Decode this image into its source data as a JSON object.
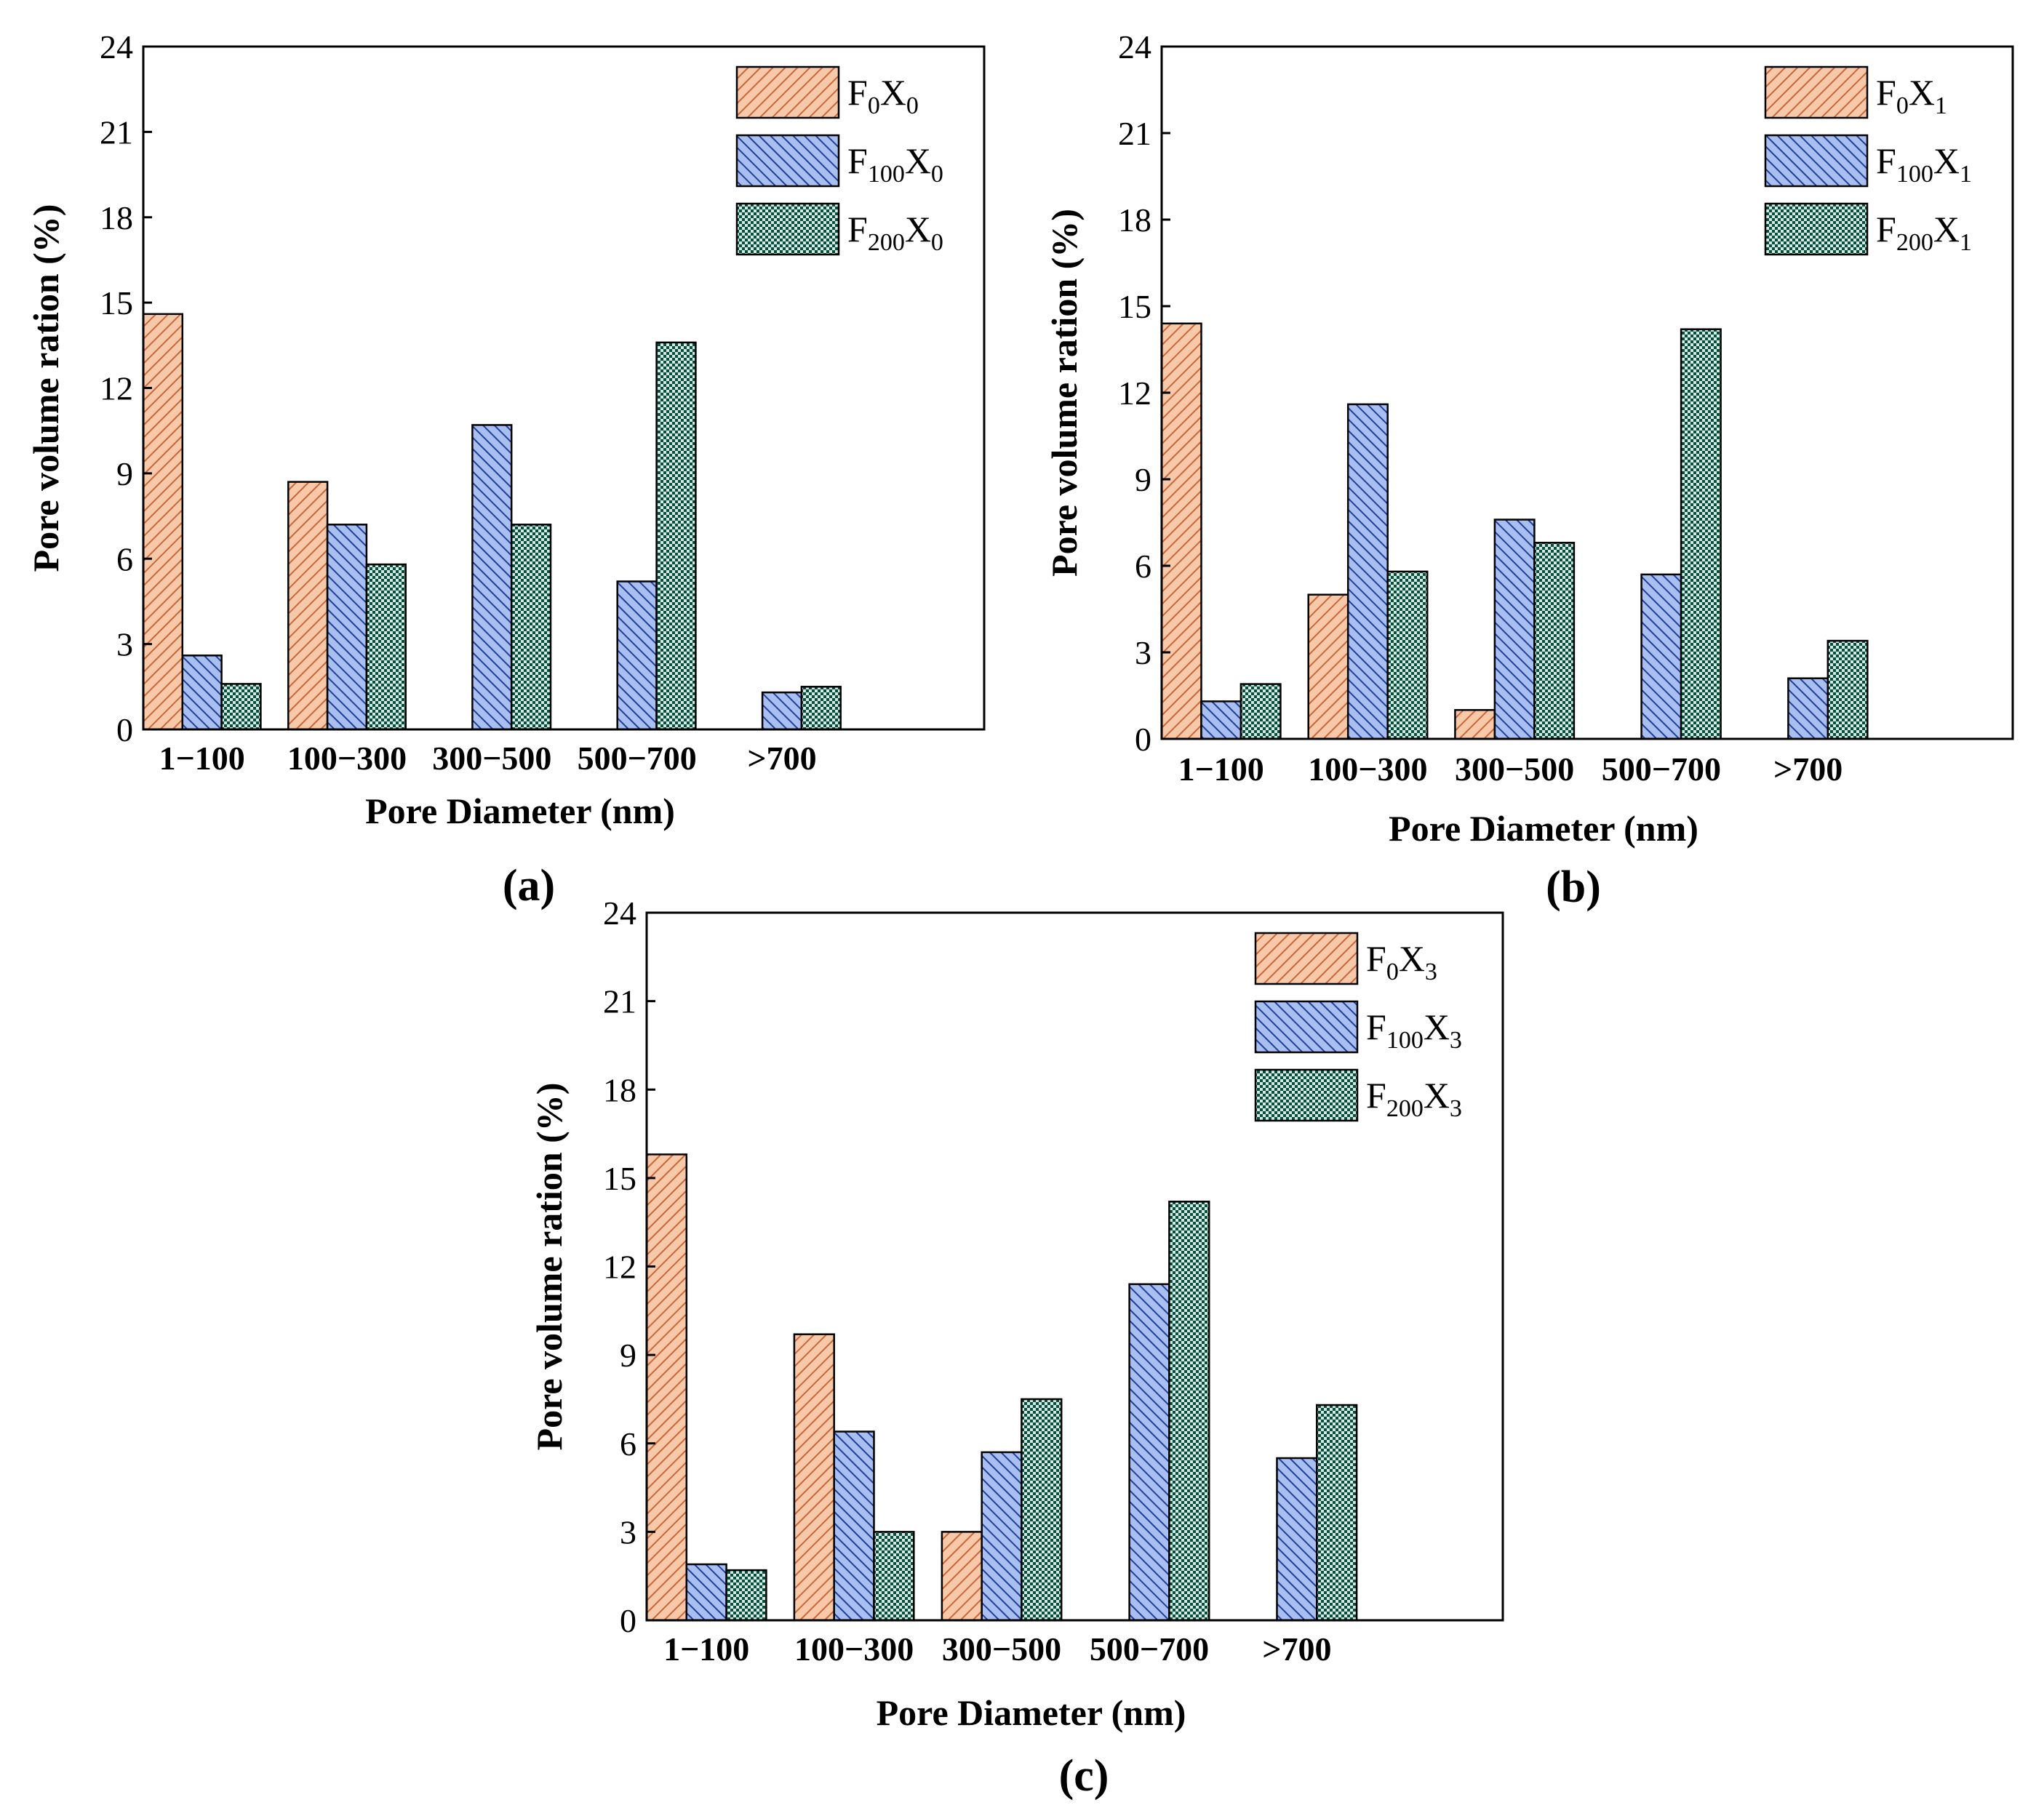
{
  "figure": {
    "description_labels": [
      "(a)",
      "(b)",
      "(c)"
    ]
  },
  "colors": {
    "orange_fill": "#f7c9a8",
    "orange_stripe": "#c8673a",
    "blue_fill": "#a9bff0",
    "blue_stripe": "#1f3f9a",
    "green_fill": "#cfeee6",
    "green_dot": "#0d4a3c",
    "axis": "#000000"
  },
  "chart_data": [
    {
      "panel_label": "(a)",
      "type": "bar",
      "xlabel": "Pore Diameter (nm)",
      "ylabel": "Pore volume ration (%)",
      "ylim": [
        0,
        24
      ],
      "yticks": [
        "0",
        "3",
        "6",
        "9",
        "12",
        "15",
        "18",
        "21",
        "24"
      ],
      "categories": [
        "1−100",
        "100−300",
        "300−500",
        "500−700",
        ">700"
      ],
      "legend_position": "top-right",
      "series": [
        {
          "name": "F0X0",
          "label_main": "F",
          "label_sub1": "0",
          "label_mid": "X",
          "label_sub2": "0",
          "pattern": "orange",
          "values": [
            14.6,
            8.7,
            0,
            0,
            0
          ]
        },
        {
          "name": "F100X0",
          "label_main": "F",
          "label_sub1": "100",
          "label_mid": "X",
          "label_sub2": "0",
          "pattern": "blue",
          "values": [
            2.6,
            7.2,
            10.7,
            5.2,
            1.3
          ]
        },
        {
          "name": "F200X0",
          "label_main": "F",
          "label_sub1": "200",
          "label_mid": "X",
          "label_sub2": "0",
          "pattern": "green",
          "values": [
            1.6,
            5.8,
            7.2,
            13.6,
            1.5
          ]
        }
      ]
    },
    {
      "panel_label": "(b)",
      "type": "bar",
      "xlabel": "Pore Diameter (nm)",
      "ylabel": "Pore volume ration (%)",
      "ylim": [
        0,
        24
      ],
      "yticks": [
        "0",
        "3",
        "6",
        "9",
        "12",
        "15",
        "18",
        "21",
        "24"
      ],
      "categories": [
        "1−100",
        "100−300",
        "300−500",
        "500−700",
        ">700"
      ],
      "legend_position": "top-right",
      "series": [
        {
          "name": "F0X1",
          "label_main": "F",
          "label_sub1": "0",
          "label_mid": "X",
          "label_sub2": "1",
          "pattern": "orange",
          "values": [
            14.4,
            5.0,
            1.0,
            0,
            0
          ]
        },
        {
          "name": "F100X1",
          "label_main": "F",
          "label_sub1": "100",
          "label_mid": "X",
          "label_sub2": "1",
          "pattern": "blue",
          "values": [
            1.3,
            11.6,
            7.6,
            5.7,
            2.1
          ]
        },
        {
          "name": "F200X1",
          "label_main": "F",
          "label_sub1": "200",
          "label_mid": "X",
          "label_sub2": "1",
          "pattern": "green",
          "values": [
            1.9,
            5.8,
            6.8,
            14.2,
            3.4
          ]
        }
      ]
    },
    {
      "panel_label": "(c)",
      "type": "bar",
      "xlabel": "Pore Diameter (nm)",
      "ylabel": "Pore volume ration (%)",
      "ylim": [
        0,
        24
      ],
      "yticks": [
        "0",
        "3",
        "6",
        "9",
        "12",
        "15",
        "18",
        "21",
        "24"
      ],
      "categories": [
        "1−100",
        "100−300",
        "300−500",
        "500−700",
        ">700"
      ],
      "legend_position": "top-right",
      "series": [
        {
          "name": "F0X3",
          "label_main": "F",
          "label_sub1": "0",
          "label_mid": "X",
          "label_sub2": "3",
          "pattern": "orange",
          "values": [
            15.8,
            9.7,
            3.0,
            0,
            0
          ]
        },
        {
          "name": "F100X3",
          "label_main": "F",
          "label_sub1": "100",
          "label_mid": "X",
          "label_sub2": "3",
          "pattern": "blue",
          "values": [
            1.9,
            6.4,
            5.7,
            11.4,
            5.5
          ]
        },
        {
          "name": "F200X3",
          "label_main": "F",
          "label_sub1": "200",
          "label_mid": "X",
          "label_sub2": "3",
          "pattern": "green",
          "values": [
            1.7,
            3.0,
            7.5,
            14.2,
            7.3
          ]
        }
      ]
    }
  ]
}
